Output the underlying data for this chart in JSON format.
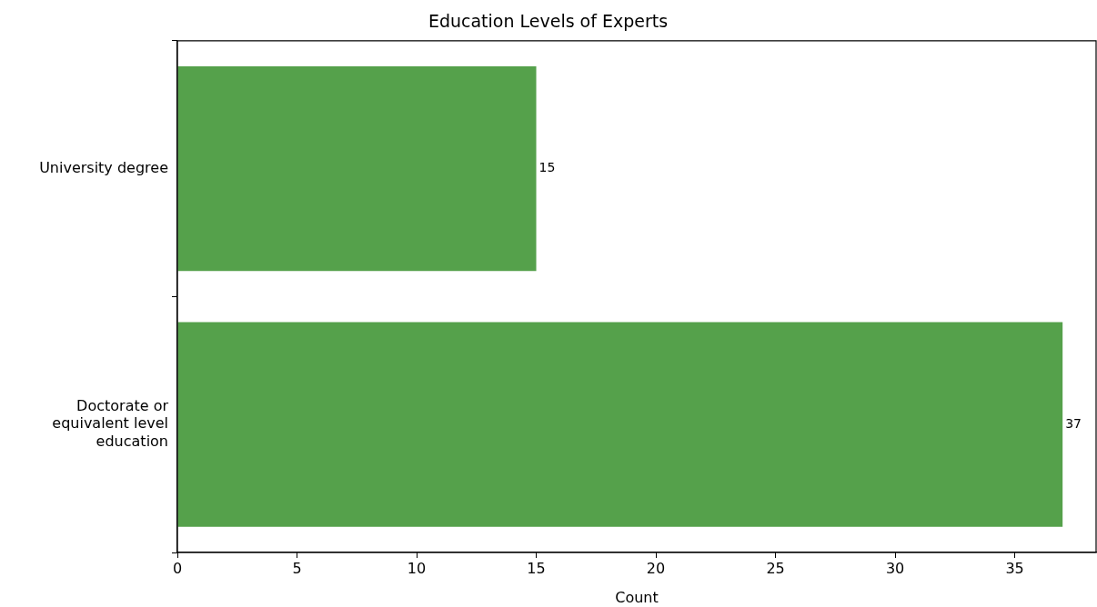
{
  "chart_data": {
    "type": "bar",
    "orientation": "horizontal",
    "title": "Education Levels of Experts",
    "xlabel": "Count",
    "categories": [
      "University degree",
      "Doctorate or equivalent level education"
    ],
    "values": [
      15,
      37
    ],
    "color": "#55a14b",
    "data_labels": true,
    "xlim": [
      0,
      38.4
    ],
    "xticks": [
      0,
      5,
      10,
      15,
      20,
      25,
      30,
      35
    ],
    "grid": false,
    "legend": false
  }
}
